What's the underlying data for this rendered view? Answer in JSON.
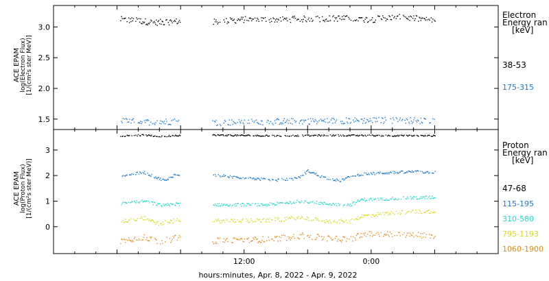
{
  "xlabel": "hours:minutes, Apr.  8, 2022 - Apr.  9, 2022",
  "chart_data": [
    {
      "type": "scatter",
      "panel": "electron",
      "ylabel_lines": [
        "ACE EPAM",
        "log(Electron Flux)",
        "[1/(cm²s ster MeV)]"
      ],
      "x_range_hours": [
        -6,
        36
      ],
      "x_ticks": [
        {
          "hour": 12,
          "label": "12:00"
        },
        {
          "hour": 24,
          "label": "0:00"
        }
      ],
      "data_gaps_hours": [
        [
          6.0,
          9.0
        ]
      ],
      "data_range_hours": [
        0.3,
        30.0
      ],
      "ylim": [
        1.33,
        3.35
      ],
      "y_ticks": [
        {
          "value": 1.5,
          "label": "1.5"
        },
        {
          "value": 2.0,
          "label": "2.0"
        },
        {
          "value": 2.5,
          "label": "2.5"
        },
        {
          "value": 3.0,
          "label": "3.0"
        }
      ],
      "legend_title": [
        "Electron",
        "Energy ran",
        "[keV]"
      ],
      "series": [
        {
          "name": "38-53",
          "color": "#000000",
          "profile": [
            [
              0.3,
              3.12
            ],
            [
              2.0,
              3.1
            ],
            [
              3.5,
              3.07
            ],
            [
              5.5,
              3.09
            ],
            [
              9.0,
              3.08
            ],
            [
              12.0,
              3.12
            ],
            [
              15.0,
              3.12
            ],
            [
              18.0,
              3.13
            ],
            [
              21.0,
              3.14
            ],
            [
              24.0,
              3.12
            ],
            [
              26.0,
              3.16
            ],
            [
              28.0,
              3.14
            ],
            [
              30.0,
              3.1
            ]
          ],
          "jitter": 0.05
        },
        {
          "name": "175-315",
          "color": "#1a78cc",
          "profile": [
            [
              0.3,
              1.47
            ],
            [
              3.0,
              1.45
            ],
            [
              5.5,
              1.46
            ],
            [
              9.0,
              1.44
            ],
            [
              15.0,
              1.46
            ],
            [
              20.0,
              1.47
            ],
            [
              25.0,
              1.48
            ],
            [
              30.0,
              1.47
            ]
          ],
          "jitter": 0.05
        }
      ]
    },
    {
      "type": "scatter",
      "panel": "proton",
      "ylabel_lines": [
        "ACE EPAM",
        "log(Proton Flux)",
        "[1/(cm²s ster MeV)]"
      ],
      "x_range_hours": [
        -6,
        36
      ],
      "x_ticks": [
        {
          "hour": 12,
          "label": "12:00"
        },
        {
          "hour": 24,
          "label": "0:00"
        }
      ],
      "data_gaps_hours": [
        [
          6.0,
          9.0
        ]
      ],
      "data_range_hours": [
        0.3,
        30.0
      ],
      "ylim": [
        -1.05,
        3.8
      ],
      "y_ticks": [
        {
          "value": 0,
          "label": "0"
        },
        {
          "value": 1,
          "label": "1"
        },
        {
          "value": 2,
          "label": "2"
        },
        {
          "value": 3,
          "label": "3"
        }
      ],
      "legend_title": [
        "Proton",
        "Energy ran",
        "[keV]"
      ],
      "series": [
        {
          "name": "47-68",
          "color": "#000000",
          "profile": [
            [
              0.3,
              3.55
            ],
            [
              2.5,
              3.58
            ],
            [
              4.0,
              3.52
            ],
            [
              5.5,
              3.57
            ],
            [
              9.0,
              3.58
            ],
            [
              15.0,
              3.55
            ],
            [
              20.0,
              3.57
            ],
            [
              25.0,
              3.56
            ],
            [
              30.0,
              3.55
            ]
          ],
          "jitter": 0.03
        },
        {
          "name": "115-195",
          "color": "#1a78cc",
          "profile": [
            [
              0.3,
              1.98
            ],
            [
              2.5,
              2.12
            ],
            [
              3.5,
              1.95
            ],
            [
              4.5,
              1.8
            ],
            [
              5.5,
              2.05
            ],
            [
              9.0,
              2.02
            ],
            [
              12.0,
              1.9
            ],
            [
              15.0,
              1.82
            ],
            [
              17.0,
              1.88
            ],
            [
              18.0,
              2.18
            ],
            [
              19.5,
              1.92
            ],
            [
              21.0,
              1.8
            ],
            [
              22.0,
              1.95
            ],
            [
              23.0,
              2.05
            ],
            [
              25.0,
              2.1
            ],
            [
              28.0,
              2.15
            ],
            [
              30.0,
              2.12
            ]
          ],
          "jitter": 0.05
        },
        {
          "name": "310-580",
          "color": "#20d8c8",
          "profile": [
            [
              0.3,
              0.9
            ],
            [
              2.5,
              1.0
            ],
            [
              4.0,
              0.85
            ],
            [
              5.5,
              0.88
            ],
            [
              9.0,
              0.86
            ],
            [
              14.0,
              0.86
            ],
            [
              17.5,
              1.0
            ],
            [
              19.5,
              0.9
            ],
            [
              22.0,
              0.85
            ],
            [
              23.0,
              1.05
            ],
            [
              26.0,
              1.1
            ],
            [
              30.0,
              1.15
            ]
          ],
          "jitter": 0.06
        },
        {
          "name": "795-1193",
          "color": "#d8d820",
          "profile": [
            [
              0.3,
              0.2
            ],
            [
              2.5,
              0.35
            ],
            [
              4.0,
              0.1
            ],
            [
              5.5,
              0.25
            ],
            [
              9.0,
              0.22
            ],
            [
              14.0,
              0.24
            ],
            [
              17.5,
              0.35
            ],
            [
              19.5,
              0.22
            ],
            [
              22.0,
              0.2
            ],
            [
              23.0,
              0.4
            ],
            [
              26.0,
              0.55
            ],
            [
              30.0,
              0.6
            ]
          ],
          "jitter": 0.08
        },
        {
          "name": "1060-1900",
          "color": "#e08a18",
          "profile": [
            [
              0.3,
              -0.55
            ],
            [
              2.5,
              -0.4
            ],
            [
              4.0,
              -0.6
            ],
            [
              5.5,
              -0.45
            ],
            [
              9.0,
              -0.55
            ],
            [
              14.0,
              -0.5
            ],
            [
              17.5,
              -0.35
            ],
            [
              19.5,
              -0.45
            ],
            [
              22.0,
              -0.5
            ],
            [
              23.0,
              -0.3
            ],
            [
              26.0,
              -0.3
            ],
            [
              30.0,
              -0.35
            ]
          ],
          "jitter": 0.12
        }
      ]
    }
  ]
}
